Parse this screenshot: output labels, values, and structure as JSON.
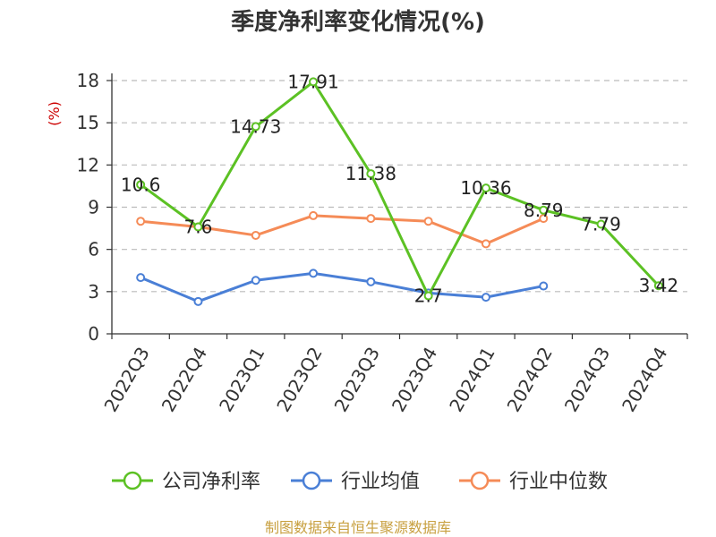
{
  "chart_data": {
    "type": "line",
    "title": "季度净利率变化情况(%)",
    "ylabel": "(%)",
    "xlabel": "",
    "ylim": [
      0,
      18
    ],
    "yticks": [
      0,
      3,
      6,
      9,
      12,
      15,
      18
    ],
    "grid": true,
    "legend_position": "bottom",
    "categories": [
      "2022Q3",
      "2022Q4",
      "2023Q1",
      "2023Q2",
      "2023Q3",
      "2023Q4",
      "2024Q1",
      "2024Q2",
      "2024Q3",
      "2024Q4"
    ],
    "series": [
      {
        "name": "公司净利率",
        "color": "#5cc124",
        "values": [
          10.6,
          7.6,
          14.73,
          17.91,
          11.38,
          2.7,
          10.36,
          8.79,
          7.79,
          3.42
        ],
        "labels": [
          "10.6",
          "7.6",
          "14.73",
          "17.91",
          "11.38",
          "2.7",
          "10.36",
          "8.79",
          "7.79",
          "3.42"
        ]
      },
      {
        "name": "行业均值",
        "color": "#4a7fd6",
        "values": [
          4.0,
          2.3,
          3.8,
          4.3,
          3.7,
          2.9,
          2.6,
          3.4,
          null,
          null
        ]
      },
      {
        "name": "行业中位数",
        "color": "#f58b57",
        "values": [
          8.0,
          7.6,
          7.0,
          8.4,
          8.2,
          8.0,
          6.4,
          8.2,
          null,
          null
        ]
      }
    ]
  },
  "source": "制图数据来自恒生聚源数据库"
}
